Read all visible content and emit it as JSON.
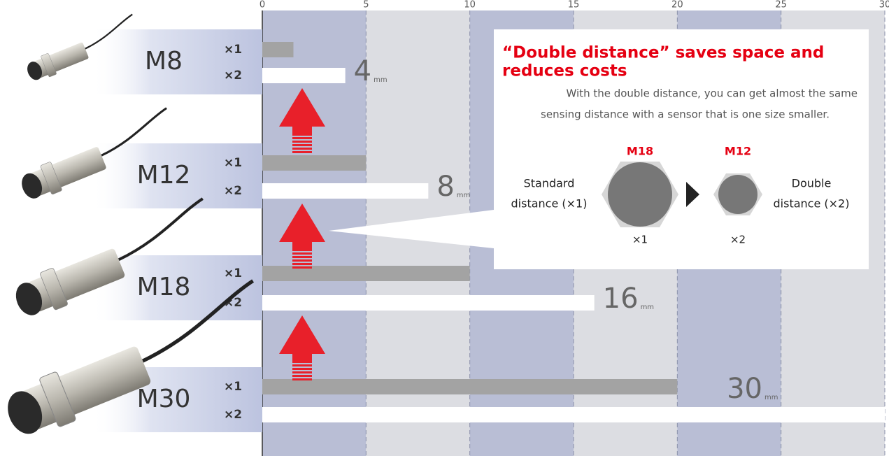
{
  "chart_data": {
    "type": "hbar",
    "categories": [
      "M8",
      "M12",
      "M18",
      "M30"
    ],
    "series": [
      {
        "name": "×1",
        "color": "#a3a3a3",
        "values": [
          1.5,
          5,
          10,
          20
        ]
      },
      {
        "name": "×2",
        "color": "#ffffff",
        "values": [
          4,
          8,
          16,
          30
        ]
      }
    ],
    "value_labels_series": 1,
    "value_labels": [
      "4",
      "8",
      "16",
      "30"
    ],
    "unit": "mm",
    "xlim": [
      0,
      30
    ],
    "xticks": [
      0,
      5,
      10,
      15,
      20,
      25,
      30
    ],
    "grid": true
  },
  "callout": {
    "title": [
      "“Double distance” saves space and",
      "reduces costs"
    ],
    "body": [
      "With the double distance, you can get almost the same",
      "sensing distance with a sensor that is one size smaller."
    ],
    "left_size": "M18",
    "right_size": "M12",
    "left_label": [
      "Standard",
      "distance (×1)"
    ],
    "right_label": [
      "Double",
      "distance (×2)"
    ],
    "left_factor": "×1",
    "right_factor": "×2"
  }
}
